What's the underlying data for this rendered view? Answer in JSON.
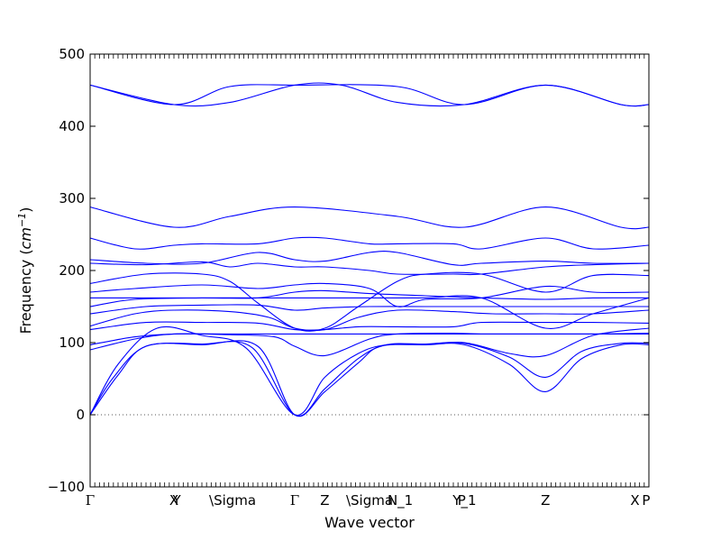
{
  "chart_data": {
    "type": "line",
    "xlabel": "Wave vector",
    "ylabel": "Frequency",
    "ylabel_unit_base": "cm",
    "ylabel_unit_exp": "−1",
    "ylim": [
      -100,
      500
    ],
    "yticks": [
      -100,
      0,
      100,
      200,
      300,
      400,
      500
    ],
    "xlim": [
      0,
      1
    ],
    "zero_line": true,
    "grid": false,
    "legend": false,
    "color": "#0000ff",
    "x_ticks": [
      {
        "x": 0.0,
        "label": "Γ"
      },
      {
        "x": 0.15,
        "label": "X"
      },
      {
        "x": 0.155,
        "label": "Y"
      },
      {
        "x": 0.255,
        "label": "\\Sigma"
      },
      {
        "x": 0.366,
        "label": "Γ"
      },
      {
        "x": 0.42,
        "label": "Z"
      },
      {
        "x": 0.5,
        "label": "\\Sigma"
      },
      {
        "x": 0.555,
        "label": "N_1"
      },
      {
        "x": 0.665,
        "label": "P"
      },
      {
        "x": 0.67,
        "label": "Y_1"
      },
      {
        "x": 0.815,
        "label": "Z"
      },
      {
        "x": 0.975,
        "label": "X"
      },
      {
        "x": 0.995,
        "label": "P"
      }
    ],
    "series": [
      {
        "values": [
          [
            0,
            0
          ],
          [
            0.04,
            50
          ],
          [
            0.1,
            95
          ],
          [
            0.2,
            97
          ],
          [
            0.3,
            95
          ],
          [
            0.366,
            0
          ],
          [
            0.42,
            32
          ],
          [
            0.48,
            72
          ],
          [
            0.52,
            95
          ],
          [
            0.6,
            97
          ],
          [
            0.67,
            97
          ],
          [
            0.75,
            70
          ],
          [
            0.815,
            32
          ],
          [
            0.88,
            78
          ],
          [
            0.95,
            97
          ],
          [
            1,
            97
          ]
        ]
      },
      {
        "values": [
          [
            0,
            0
          ],
          [
            0.05,
            55
          ],
          [
            0.1,
            95
          ],
          [
            0.2,
            98
          ],
          [
            0.29,
            93
          ],
          [
            0.366,
            0
          ],
          [
            0.42,
            36
          ],
          [
            0.48,
            78
          ],
          [
            0.53,
            97
          ],
          [
            0.6,
            98
          ],
          [
            0.67,
            99
          ],
          [
            0.75,
            80
          ],
          [
            0.815,
            52
          ],
          [
            0.88,
            88
          ],
          [
            0.95,
            99
          ],
          [
            1,
            99
          ]
        ]
      },
      {
        "values": [
          [
            0,
            0
          ],
          [
            0.05,
            70
          ],
          [
            0.12,
            120
          ],
          [
            0.2,
            110
          ],
          [
            0.28,
            92
          ],
          [
            0.366,
            0
          ],
          [
            0.42,
            52
          ],
          [
            0.48,
            85
          ],
          [
            0.53,
            97
          ],
          [
            0.6,
            98
          ],
          [
            0.67,
            100
          ],
          [
            0.75,
            85
          ],
          [
            0.815,
            82
          ],
          [
            0.9,
            110
          ],
          [
            1,
            120
          ]
        ]
      },
      {
        "values": [
          [
            0,
            90
          ],
          [
            0.08,
            105
          ],
          [
            0.15,
            112
          ],
          [
            0.25,
            111
          ],
          [
            0.33,
            108
          ],
          [
            0.366,
            95
          ],
          [
            0.42,
            82
          ],
          [
            0.5,
            105
          ],
          [
            0.55,
            112
          ],
          [
            0.65,
            113
          ],
          [
            0.7,
            112
          ],
          [
            0.815,
            112
          ],
          [
            0.9,
            112
          ],
          [
            1,
            113
          ]
        ]
      },
      {
        "values": [
          [
            0,
            97
          ],
          [
            0.08,
            108
          ],
          [
            0.15,
            112
          ],
          [
            0.25,
            112
          ],
          [
            0.33,
            112
          ],
          [
            0.366,
            112
          ],
          [
            0.42,
            112
          ],
          [
            0.5,
            112
          ],
          [
            0.55,
            112
          ],
          [
            0.65,
            112
          ],
          [
            0.75,
            112
          ],
          [
            0.815,
            112
          ],
          [
            0.9,
            112
          ],
          [
            1,
            112
          ]
        ]
      },
      {
        "values": [
          [
            0,
            118
          ],
          [
            0.1,
            128
          ],
          [
            0.2,
            128
          ],
          [
            0.3,
            127
          ],
          [
            0.366,
            118
          ],
          [
            0.42,
            118
          ],
          [
            0.48,
            122
          ],
          [
            0.55,
            122
          ],
          [
            0.65,
            122
          ],
          [
            0.7,
            128
          ],
          [
            0.815,
            128
          ],
          [
            0.9,
            128
          ],
          [
            1,
            127
          ]
        ]
      },
      {
        "values": [
          [
            0,
            123
          ],
          [
            0.08,
            140
          ],
          [
            0.15,
            145
          ],
          [
            0.25,
            143
          ],
          [
            0.32,
            135
          ],
          [
            0.366,
            120
          ],
          [
            0.42,
            118
          ],
          [
            0.48,
            135
          ],
          [
            0.55,
            145
          ],
          [
            0.65,
            143
          ],
          [
            0.72,
            140
          ],
          [
            0.815,
            140
          ],
          [
            0.9,
            140
          ],
          [
            1,
            145
          ]
        ]
      },
      {
        "values": [
          [
            0,
            140
          ],
          [
            0.1,
            150
          ],
          [
            0.2,
            152
          ],
          [
            0.3,
            152
          ],
          [
            0.366,
            145
          ],
          [
            0.42,
            148
          ],
          [
            0.5,
            150
          ],
          [
            0.6,
            150
          ],
          [
            0.7,
            150
          ],
          [
            0.8,
            150
          ],
          [
            0.9,
            150
          ],
          [
            1,
            150
          ]
        ]
      },
      {
        "values": [
          [
            0,
            150
          ],
          [
            0.08,
            160
          ],
          [
            0.2,
            162
          ],
          [
            0.3,
            162
          ],
          [
            0.366,
            162
          ],
          [
            0.42,
            162
          ],
          [
            0.5,
            162
          ],
          [
            0.6,
            162
          ],
          [
            0.7,
            162
          ],
          [
            0.815,
            120
          ],
          [
            0.9,
            140
          ],
          [
            1,
            162
          ]
        ]
      },
      {
        "values": [
          [
            0,
            162
          ],
          [
            0.08,
            162
          ],
          [
            0.2,
            162
          ],
          [
            0.3,
            162
          ],
          [
            0.366,
            170
          ],
          [
            0.42,
            172
          ],
          [
            0.5,
            168
          ],
          [
            0.6,
            165
          ],
          [
            0.7,
            162
          ],
          [
            0.815,
            160
          ],
          [
            0.9,
            162
          ],
          [
            1,
            162
          ]
        ]
      },
      {
        "values": [
          [
            0,
            170
          ],
          [
            0.08,
            175
          ],
          [
            0.2,
            180
          ],
          [
            0.3,
            175
          ],
          [
            0.366,
            180
          ],
          [
            0.42,
            182
          ],
          [
            0.5,
            175
          ],
          [
            0.55,
            150
          ],
          [
            0.6,
            160
          ],
          [
            0.7,
            162
          ],
          [
            0.815,
            178
          ],
          [
            0.9,
            170
          ],
          [
            1,
            170
          ]
        ]
      },
      {
        "values": [
          [
            0,
            182
          ],
          [
            0.1,
            195
          ],
          [
            0.2,
            195
          ],
          [
            0.25,
            185
          ],
          [
            0.3,
            155
          ],
          [
            0.366,
            120
          ],
          [
            0.42,
            120
          ],
          [
            0.48,
            150
          ],
          [
            0.55,
            185
          ],
          [
            0.6,
            195
          ],
          [
            0.7,
            195
          ],
          [
            0.815,
            170
          ],
          [
            0.9,
            193
          ],
          [
            1,
            193
          ]
        ]
      },
      {
        "values": [
          [
            0,
            210
          ],
          [
            0.1,
            208
          ],
          [
            0.2,
            212
          ],
          [
            0.25,
            205
          ],
          [
            0.3,
            210
          ],
          [
            0.366,
            205
          ],
          [
            0.42,
            205
          ],
          [
            0.5,
            200
          ],
          [
            0.55,
            195
          ],
          [
            0.65,
            195
          ],
          [
            0.7,
            195
          ],
          [
            0.815,
            205
          ],
          [
            0.9,
            208
          ],
          [
            1,
            210
          ]
        ]
      },
      {
        "values": [
          [
            0,
            215
          ],
          [
            0.1,
            210
          ],
          [
            0.2,
            210
          ],
          [
            0.3,
            225
          ],
          [
            0.366,
            215
          ],
          [
            0.42,
            213
          ],
          [
            0.5,
            225
          ],
          [
            0.55,
            225
          ],
          [
            0.65,
            208
          ],
          [
            0.7,
            210
          ],
          [
            0.815,
            213
          ],
          [
            0.9,
            210
          ],
          [
            1,
            210
          ]
        ]
      },
      {
        "values": [
          [
            0,
            245
          ],
          [
            0.08,
            230
          ],
          [
            0.15,
            235
          ],
          [
            0.2,
            237
          ],
          [
            0.3,
            237
          ],
          [
            0.366,
            245
          ],
          [
            0.42,
            245
          ],
          [
            0.5,
            237
          ],
          [
            0.55,
            237
          ],
          [
            0.65,
            237
          ],
          [
            0.7,
            230
          ],
          [
            0.815,
            245
          ],
          [
            0.9,
            230
          ],
          [
            1,
            235
          ]
        ]
      },
      {
        "values": [
          [
            0,
            288
          ],
          [
            0.15,
            260
          ],
          [
            0.25,
            275
          ],
          [
            0.366,
            288
          ],
          [
            0.55,
            275
          ],
          [
            0.67,
            260
          ],
          [
            0.815,
            288
          ],
          [
            0.95,
            260
          ],
          [
            1,
            260
          ]
        ]
      },
      {
        "values": [
          [
            0,
            457
          ],
          [
            0.15,
            430
          ],
          [
            0.25,
            455
          ],
          [
            0.366,
            457
          ],
          [
            0.55,
            455
          ],
          [
            0.67,
            430
          ],
          [
            0.815,
            457
          ],
          [
            0.95,
            430
          ],
          [
            1,
            430
          ]
        ]
      },
      {
        "values": [
          [
            0,
            457
          ],
          [
            0.15,
            430
          ],
          [
            0.25,
            433
          ],
          [
            0.366,
            457
          ],
          [
            0.45,
            457
          ],
          [
            0.55,
            433
          ],
          [
            0.67,
            430
          ],
          [
            0.815,
            457
          ],
          [
            0.95,
            430
          ],
          [
            1,
            430
          ]
        ]
      }
    ]
  }
}
